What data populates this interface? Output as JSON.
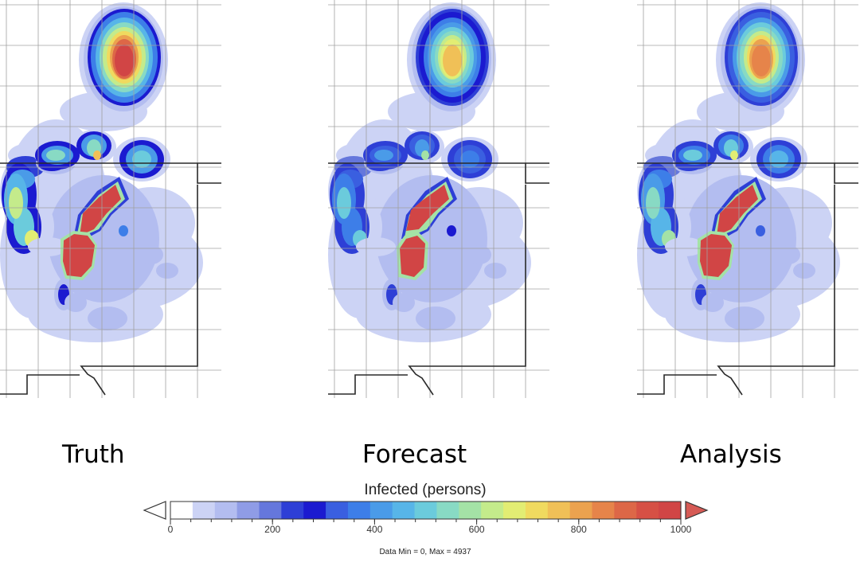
{
  "panels": [
    {
      "id": "truth",
      "label": "Truth"
    },
    {
      "id": "forecast",
      "label": "Forecast"
    },
    {
      "id": "analysis",
      "label": "Analysis"
    }
  ],
  "legend": {
    "title": "Infected (persons)",
    "min": 0,
    "max": 1000,
    "step": 40,
    "tick_values": [
      0,
      200,
      400,
      600,
      800,
      1000
    ],
    "tick_labels": [
      "0",
      "200",
      "400",
      "600",
      "800",
      "1000"
    ],
    "colors": [
      "#ffffff",
      "#ccd3f5",
      "#b3bdf0",
      "#8f9ce6",
      "#6577dc",
      "#2e3fd6",
      "#1b1ad0",
      "#3a5fe0",
      "#3d7ee8",
      "#4a9be8",
      "#57b5e8",
      "#6bcbdc",
      "#88dac4",
      "#a4e2a6",
      "#c4eb8b",
      "#e2ed73",
      "#f0da5f",
      "#f0c057",
      "#eba24f",
      "#e6844a",
      "#dd6747",
      "#d65045",
      "#d14545"
    ],
    "under_color": "#ffffff",
    "over_color": "#d65a55"
  },
  "data_note": "Data Min = 0, Max = 4937"
}
